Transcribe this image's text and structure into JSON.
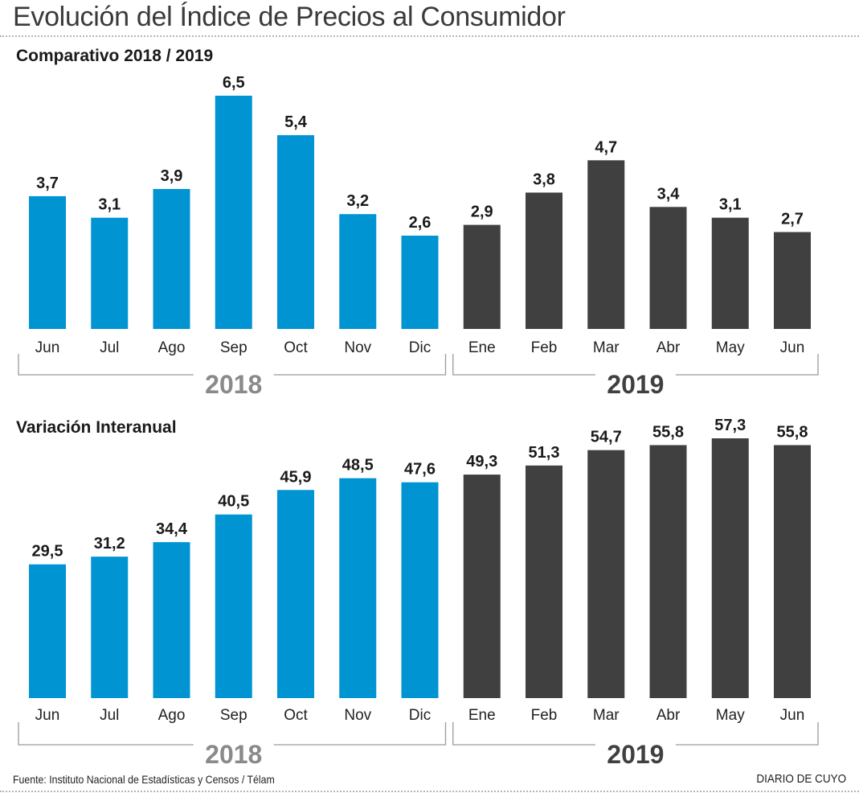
{
  "header": {
    "title": "Evolución del Índice de Precios al Consumidor"
  },
  "colors": {
    "year_2018": "#0094d3",
    "year_2019": "#404040",
    "label_2018": "#8a8a8a",
    "label_2019": "#404040",
    "value_label": "#1a1a1a"
  },
  "chart_data": [
    {
      "type": "bar",
      "title": "Comparativo 2018 / 2019",
      "xlabel": "",
      "ylabel": "",
      "categories": [
        "Jun",
        "Jul",
        "Ago",
        "Sep",
        "Oct",
        "Nov",
        "Dic",
        "Ene",
        "Feb",
        "Mar",
        "Abr",
        "May",
        "Jun"
      ],
      "values": [
        3.7,
        3.1,
        3.9,
        6.5,
        5.4,
        3.2,
        2.6,
        2.9,
        3.8,
        4.7,
        3.4,
        3.1,
        2.7
      ],
      "value_labels": [
        "3,7",
        "3,1",
        "3,9",
        "6,5",
        "5,4",
        "3,2",
        "2,6",
        "2,9",
        "3,8",
        "4,7",
        "3,4",
        "3,1",
        "2,7"
      ],
      "groups": [
        {
          "name": "2018",
          "start": 0,
          "end": 6
        },
        {
          "name": "2019",
          "start": 7,
          "end": 12
        }
      ],
      "ylim": [
        0,
        6.5
      ],
      "grid": false,
      "legend": "none"
    },
    {
      "type": "bar",
      "title": "Variación Interanual",
      "xlabel": "",
      "ylabel": "",
      "categories": [
        "Jun",
        "Jul",
        "Ago",
        "Sep",
        "Oct",
        "Nov",
        "Dic",
        "Ene",
        "Feb",
        "Mar",
        "Abr",
        "May",
        "Jun"
      ],
      "values": [
        29.5,
        31.2,
        34.4,
        40.5,
        45.9,
        48.5,
        47.6,
        49.3,
        51.3,
        54.7,
        55.8,
        57.3,
        55.8
      ],
      "value_labels": [
        "29,5",
        "31,2",
        "34,4",
        "40,5",
        "45,9",
        "48,5",
        "47,6",
        "49,3",
        "51,3",
        "54,7",
        "55,8",
        "57,3",
        "55,8"
      ],
      "groups": [
        {
          "name": "2018",
          "start": 0,
          "end": 6
        },
        {
          "name": "2019",
          "start": 7,
          "end": 12
        }
      ],
      "ylim": [
        0,
        57.3
      ],
      "grid": false,
      "legend": "none"
    }
  ],
  "footer": {
    "source": "Fuente: Instituto Nacional de Estadísticas y Censos / Télam",
    "brand": "DIARIO DE CUYO"
  }
}
